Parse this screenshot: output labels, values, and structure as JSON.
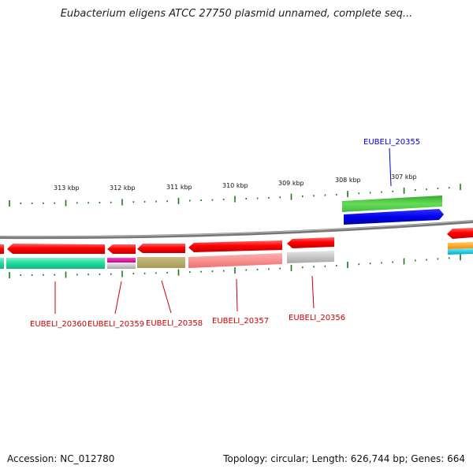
{
  "title": "Eubacterium eligens ATCC 27750 plasmid unnamed, complete seq...",
  "footer": {
    "accession_label": "Accession:",
    "accession": "NC_012780",
    "topology_label": "Topology:",
    "topology": "circular",
    "length_label": "Length:",
    "length": "626,744 bp",
    "genes_label": "Genes:",
    "genes": "664"
  },
  "scale": {
    "ticks": [
      "313 kbp",
      "312 kbp",
      "311 kbp",
      "310 kbp",
      "309 kbp",
      "308 kbp",
      "307 kbp"
    ]
  },
  "genes": [
    {
      "label": "EUBELI_20360",
      "strand": "reverse"
    },
    {
      "label": "EUBELI_20359",
      "strand": "reverse"
    },
    {
      "label": "EUBELI_20358",
      "strand": "reverse"
    },
    {
      "label": "EUBELI_20357",
      "strand": "reverse"
    },
    {
      "label": "EUBELI_20356",
      "strand": "reverse"
    },
    {
      "label": "EUBELI_20355",
      "strand": "forward"
    }
  ],
  "colors": {
    "backbone": "#888888",
    "cds_reverse": "#ff1a1a",
    "cds_forward_top": "#33bb33",
    "cds_forward_bottom": "#0000ee",
    "tick": "#1a7a1a",
    "label_reverse": "#cc0000",
    "label_forward": "#0000cc"
  }
}
